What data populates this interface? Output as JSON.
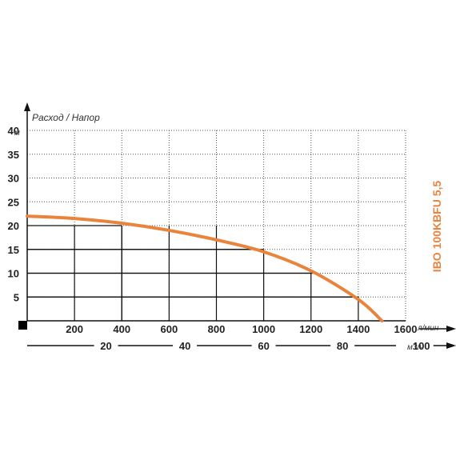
{
  "chart_data": {
    "type": "line",
    "title": "Расход / Напор",
    "model": "IBO 100KBFU 5,5",
    "y_unit": "м",
    "x_unit_primary": "л/мин",
    "x_unit_secondary": "м3/ч",
    "y_ticks": [
      5,
      10,
      15,
      20,
      25,
      30,
      35,
      40
    ],
    "x_ticks_primary": [
      200,
      400,
      600,
      800,
      1000,
      1200,
      1400,
      1600
    ],
    "x_ticks_secondary": [
      20,
      40,
      60,
      80,
      100
    ],
    "ylim": [
      0,
      40
    ],
    "xlim": [
      0,
      1600
    ],
    "grid": true,
    "series": [
      {
        "name": "",
        "color": "#e8843c",
        "x": [
          0,
          200,
          400,
          600,
          800,
          1000,
          1200,
          1400,
          1500
        ],
        "y": [
          22,
          21.5,
          20.5,
          19,
          17,
          14.5,
          10.5,
          4.5,
          0
        ]
      }
    ],
    "highlight_points": [
      {
        "x": 400,
        "y": 20
      },
      {
        "x": 1000,
        "y": 15
      },
      {
        "x": 1200,
        "y": 10
      },
      {
        "x": 1400,
        "y": 5
      }
    ]
  }
}
